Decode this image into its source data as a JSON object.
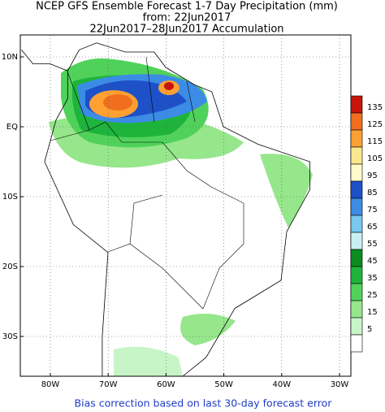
{
  "title": [
    "NCEP GFS Ensemble Forecast 1-7 Day Precipitation (mm)",
    "from: 22Jun2017",
    "22Jun2017–28Jun2017 Accumulation"
  ],
  "lat_labels": [
    "10N",
    "EQ",
    "10S",
    "20S",
    "30S"
  ],
  "lon_labels": [
    "80W",
    "70W",
    "60W",
    "50W",
    "40W",
    "30W"
  ],
  "colorbar": {
    "levels": [
      135,
      125,
      115,
      105,
      95,
      85,
      75,
      65,
      55,
      45,
      35,
      25,
      15,
      5
    ],
    "colors": [
      "#c8140a",
      "#f06e1e",
      "#ffa032",
      "#fae68c",
      "#fffac8",
      "#1e50c8",
      "#3c8ce6",
      "#78c8f0",
      "#c8f0f0",
      "#0a8c1e",
      "#1eb43c",
      "#50d25a",
      "#96e68c",
      "#c8f5c8"
    ]
  },
  "footer": "Bias correction based on last 30-day forecast error"
}
